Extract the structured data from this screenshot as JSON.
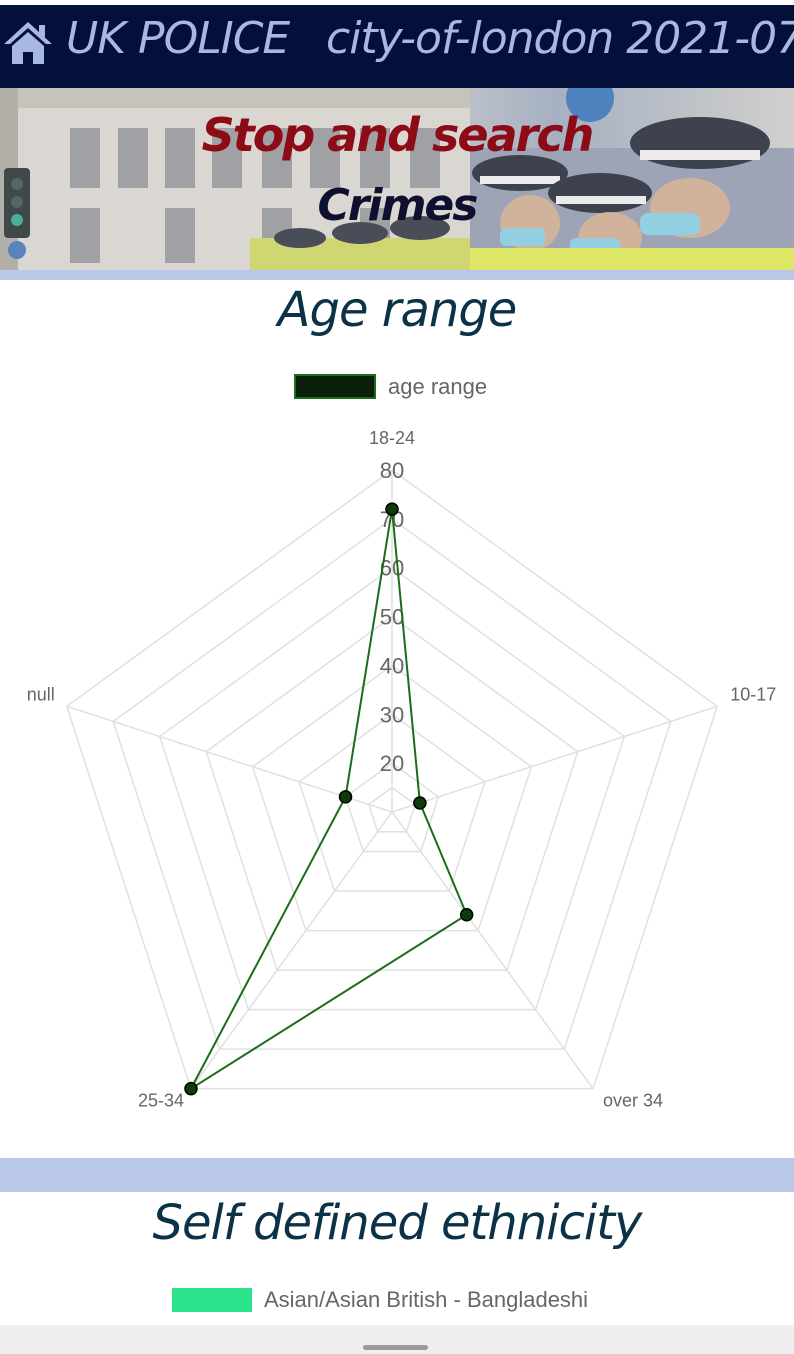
{
  "header": {
    "brand": "UK POLICE",
    "location": "city-of-london 2021-07",
    "home_icon": "home-icon"
  },
  "hero": {
    "title_line1": "Stop and search",
    "title_line2": "Crimes"
  },
  "age_section": {
    "title": "Age range",
    "chart_data": {
      "type": "radar",
      "categories": [
        "18-24",
        "10-17",
        "over 34",
        "25-34",
        "null"
      ],
      "series": [
        {
          "name": "age range",
          "values": [
            72,
            16,
            36,
            80,
            20
          ]
        }
      ],
      "ticks": [
        20,
        30,
        40,
        50,
        60,
        70,
        80
      ],
      "range": [
        10,
        80
      ],
      "legend_position": "top",
      "colors": {
        "line": "#1a6e1a",
        "point_fill": "#0b3d0b",
        "legend_fill": "#0b1d0b",
        "grid": "#e0e0e0"
      }
    }
  },
  "ethnicity_section": {
    "title": "Self defined ethnicity",
    "legend": [
      {
        "label": "Asian/Asian British - Bangladeshi",
        "color": "#2be28d"
      }
    ]
  }
}
